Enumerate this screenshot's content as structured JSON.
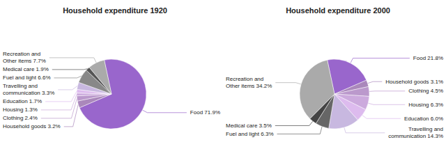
{
  "chart_data": [
    {
      "type": "pie",
      "title": "Household expenditure 1920",
      "categories": [
        "Food 71.9%",
        "Household goods 3.2%",
        "Clothing 2.4%",
        "Housing 1.3%",
        "Education 1.7%",
        "Travelling and\ncommunication 3.3%",
        "Fuel and light 6.6%",
        "Medical care 1.9%",
        "Recreation and\nOther items 7.7%"
      ],
      "values": [
        71.9,
        3.2,
        2.4,
        1.3,
        1.7,
        3.3,
        6.6,
        1.9,
        7.7
      ],
      "colors": [
        "#9966CC",
        "#AA88BB",
        "#BB99CC",
        "#CCAADD",
        "#DDBBEE",
        "#C8B8E0",
        "#888888",
        "#555555",
        "#AAAAAA"
      ],
      "data_labels": true
    },
    {
      "type": "pie",
      "title": "Household expenditure 2000",
      "categories": [
        "Food 21.8%",
        "Household goods 3.1%",
        "Clothing 4.5%",
        "Housing 6.3%",
        "Education 6.0%",
        "Travelling and\ncommunication 14.3%",
        "Fuel and light 6.3%",
        "Medical care 3.5%",
        "Recreation and\nOther items 34.2%"
      ],
      "values": [
        21.8,
        3.1,
        4.5,
        6.3,
        6.0,
        14.3,
        6.3,
        3.5,
        34.2
      ],
      "colors": [
        "#9966CC",
        "#AA88BB",
        "#BB99CC",
        "#CCAADD",
        "#DDBBEE",
        "#C8B8E0",
        "#666666",
        "#444444",
        "#AAAAAA"
      ],
      "data_labels": true
    }
  ]
}
